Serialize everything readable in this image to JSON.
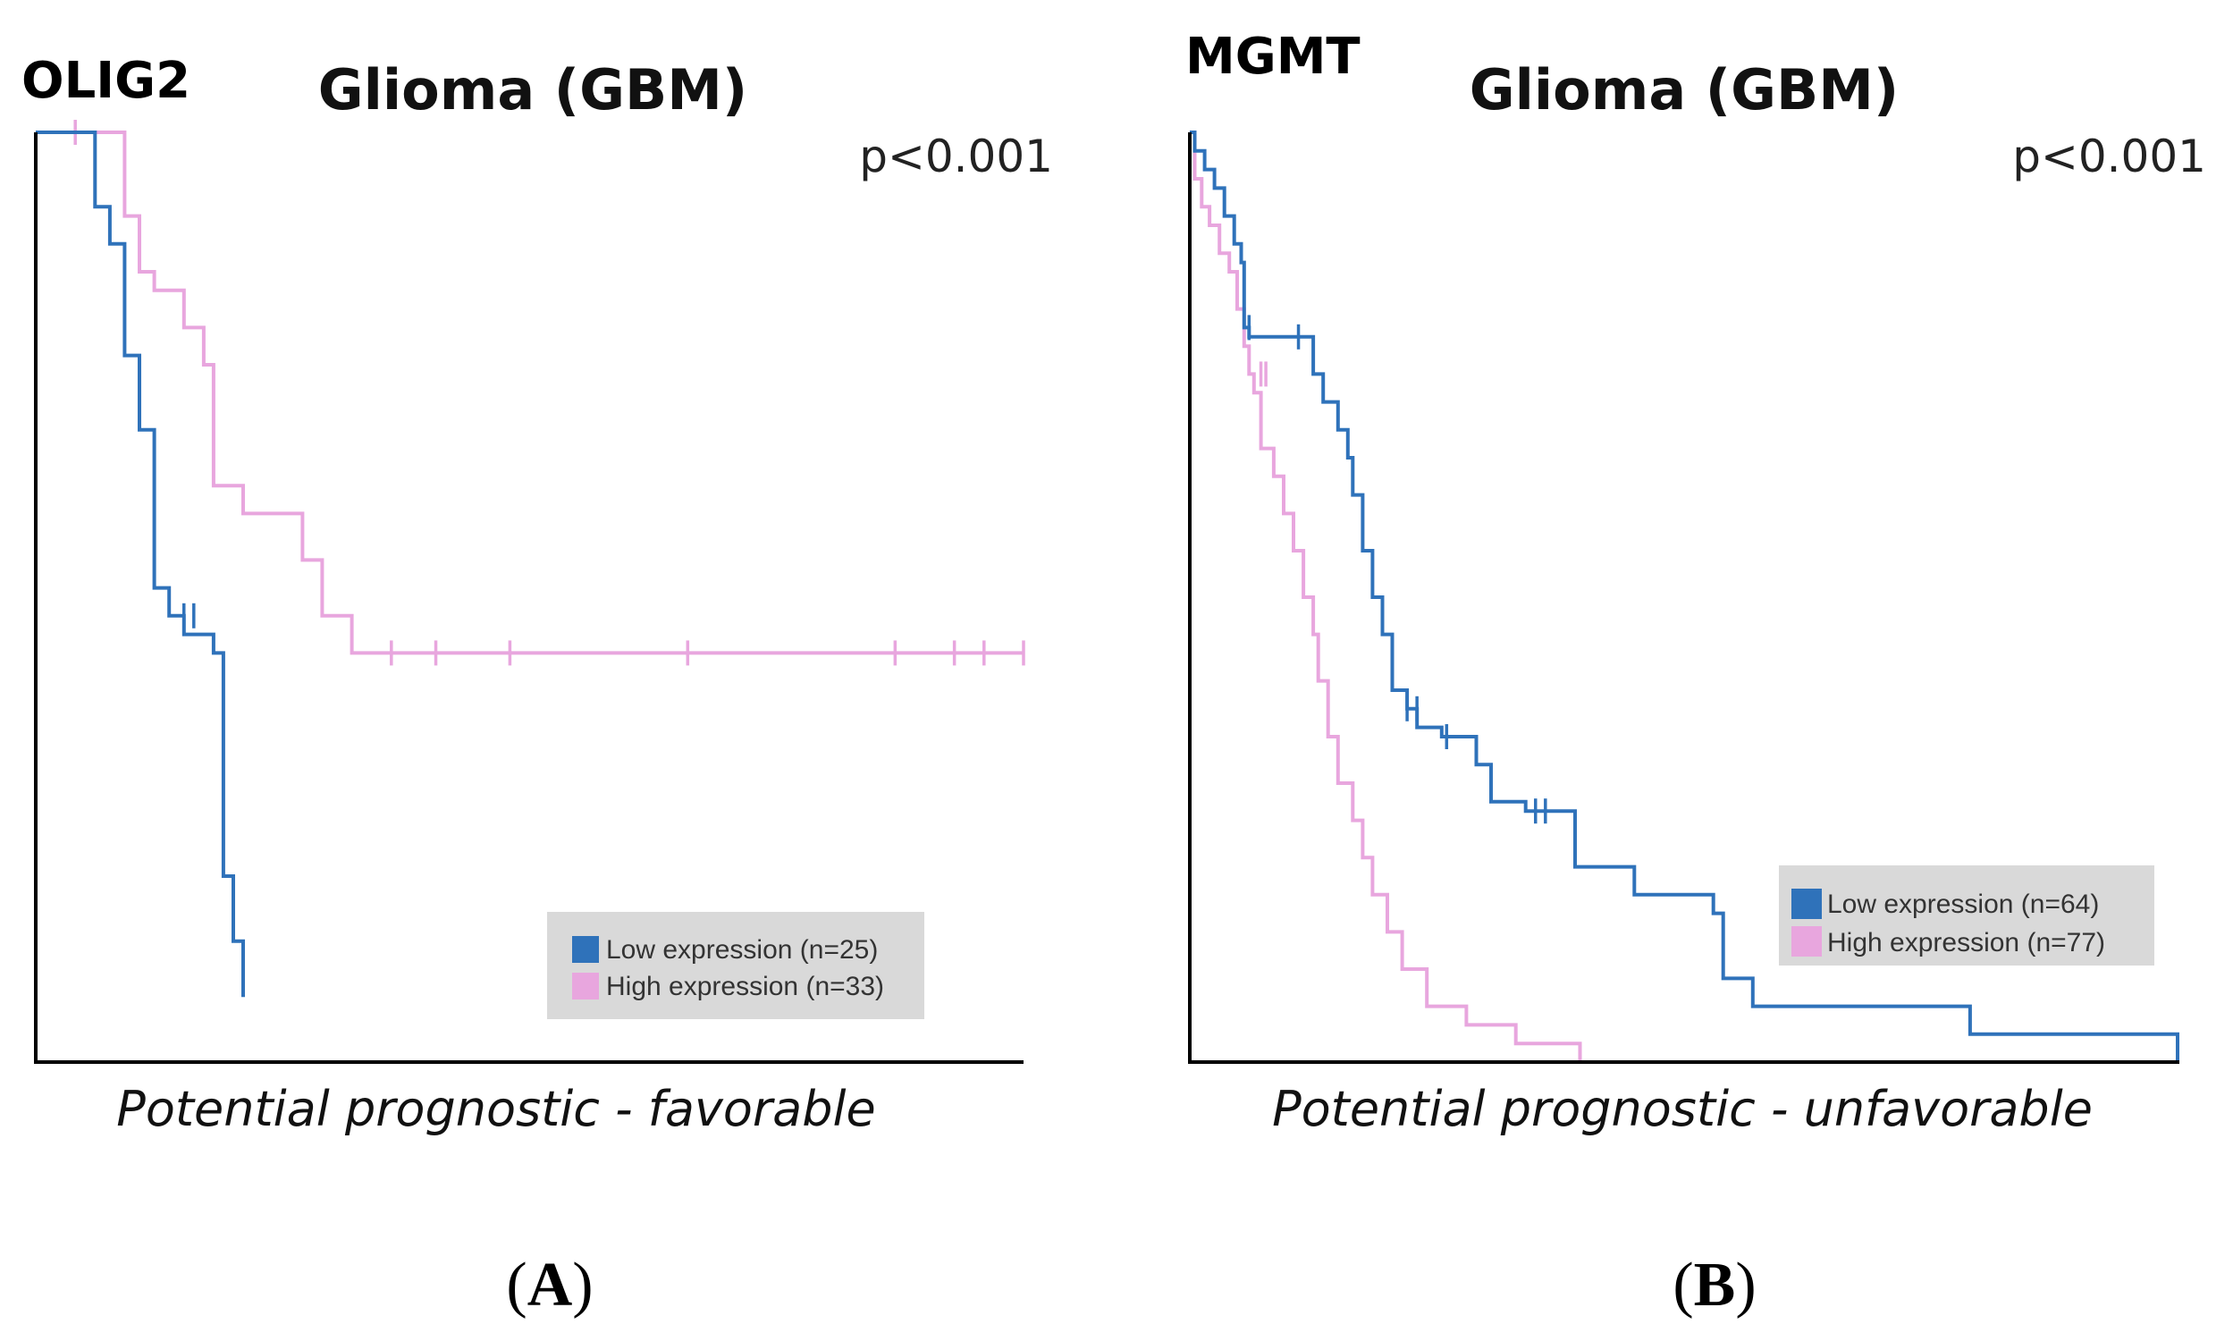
{
  "colors": {
    "low": "#2f72ba",
    "high": "#e8a6de",
    "legend_bg": "#d9d9d9",
    "axis": "#000000"
  },
  "chart_data": [
    {
      "type": "line",
      "panel_label": "A",
      "gene": "OLIG2",
      "title": "Glioma (GBM)",
      "p_value": "p<0.001",
      "caption": "Potential prognostic - favorable",
      "xlim": [
        0,
        100
      ],
      "ylim": [
        0,
        100
      ],
      "xlabel": "",
      "ylabel": "",
      "legend_position": "bottom-right",
      "series": [
        {
          "name": "Low expression (n=25)",
          "color_key": "low",
          "steps": [
            [
              0,
              100
            ],
            [
              6,
              100
            ],
            [
              6,
              92
            ],
            [
              7.5,
              92
            ],
            [
              7.5,
              88
            ],
            [
              9,
              88
            ],
            [
              9,
              76
            ],
            [
              10.5,
              76
            ],
            [
              10.5,
              68
            ],
            [
              12,
              68
            ],
            [
              12,
              51
            ],
            [
              13.5,
              51
            ],
            [
              13.5,
              48
            ],
            [
              15,
              48
            ],
            [
              15,
              46
            ],
            [
              18,
              46
            ],
            [
              18,
              44
            ],
            [
              19,
              44
            ],
            [
              19,
              20
            ],
            [
              20,
              20
            ],
            [
              20,
              13
            ],
            [
              21,
              13
            ],
            [
              21,
              7
            ]
          ],
          "censors": [
            [
              15,
              48
            ],
            [
              16,
              48
            ]
          ]
        },
        {
          "name": "High expression (n=33)",
          "color_key": "high",
          "steps": [
            [
              0,
              100
            ],
            [
              9,
              100
            ],
            [
              9,
              91
            ],
            [
              10.5,
              91
            ],
            [
              10.5,
              85
            ],
            [
              12,
              85
            ],
            [
              12,
              83
            ],
            [
              15,
              83
            ],
            [
              15,
              79
            ],
            [
              17,
              79
            ],
            [
              17,
              75
            ],
            [
              18,
              75
            ],
            [
              18,
              62
            ],
            [
              21,
              62
            ],
            [
              21,
              59
            ],
            [
              27,
              59
            ],
            [
              27,
              54
            ],
            [
              29,
              54
            ],
            [
              29,
              48
            ],
            [
              32,
              48
            ],
            [
              32,
              44
            ],
            [
              100,
              44
            ]
          ],
          "censors": [
            [
              4,
              100
            ],
            [
              36,
              44
            ],
            [
              40.5,
              44
            ],
            [
              48,
              44
            ],
            [
              66,
              44
            ],
            [
              87,
              44
            ],
            [
              93,
              44
            ],
            [
              96,
              44
            ],
            [
              100,
              44
            ]
          ]
        }
      ]
    },
    {
      "type": "line",
      "panel_label": "B",
      "gene": "MGMT",
      "title": "Glioma (GBM)",
      "p_value": "p<0.001",
      "caption": "Potential prognostic - unfavorable",
      "xlim": [
        0,
        100
      ],
      "ylim": [
        0,
        100
      ],
      "xlabel": "",
      "ylabel": "",
      "legend_position": "bottom-right",
      "series": [
        {
          "name": "Low expression (n=64)",
          "color_key": "low",
          "steps": [
            [
              0,
              100
            ],
            [
              0.5,
              100
            ],
            [
              0.5,
              98
            ],
            [
              1.5,
              98
            ],
            [
              1.5,
              96
            ],
            [
              2.5,
              96
            ],
            [
              2.5,
              94
            ],
            [
              3.5,
              94
            ],
            [
              3.5,
              91
            ],
            [
              4.5,
              91
            ],
            [
              4.5,
              88
            ],
            [
              5.2,
              88
            ],
            [
              5.2,
              86
            ],
            [
              5.5,
              86
            ],
            [
              5.5,
              79
            ],
            [
              6,
              79
            ],
            [
              6,
              78
            ],
            [
              12.5,
              78
            ],
            [
              12.5,
              74
            ],
            [
              13.5,
              74
            ],
            [
              13.5,
              71
            ],
            [
              15,
              71
            ],
            [
              15,
              68
            ],
            [
              16,
              68
            ],
            [
              16,
              65
            ],
            [
              16.5,
              65
            ],
            [
              16.5,
              61
            ],
            [
              17.5,
              61
            ],
            [
              17.5,
              55
            ],
            [
              18.5,
              55
            ],
            [
              18.5,
              50
            ],
            [
              19.5,
              50
            ],
            [
              19.5,
              46
            ],
            [
              20.5,
              46
            ],
            [
              20.5,
              40
            ],
            [
              22,
              40
            ],
            [
              22,
              38
            ],
            [
              23,
              38
            ],
            [
              23,
              36
            ],
            [
              25.5,
              36
            ],
            [
              25.5,
              35
            ],
            [
              29,
              35
            ],
            [
              29,
              32
            ],
            [
              30.5,
              32
            ],
            [
              30.5,
              28
            ],
            [
              34,
              28
            ],
            [
              34,
              27
            ],
            [
              39,
              27
            ],
            [
              39,
              21
            ],
            [
              45,
              21
            ],
            [
              45,
              18
            ],
            [
              53,
              18
            ],
            [
              53,
              16
            ],
            [
              54,
              16
            ],
            [
              54,
              9
            ],
            [
              57,
              9
            ],
            [
              57,
              6
            ],
            [
              79,
              6
            ],
            [
              79,
              3
            ],
            [
              100,
              3
            ],
            [
              100,
              0
            ]
          ],
          "censors": [
            [
              6,
              79
            ],
            [
              11,
              78
            ],
            [
              22,
              38
            ],
            [
              23,
              38
            ],
            [
              26,
              35
            ],
            [
              35,
              27
            ],
            [
              36,
              27
            ]
          ]
        },
        {
          "name": "High expression (n=77)",
          "color_key": "high",
          "steps": [
            [
              0,
              100
            ],
            [
              0.5,
              100
            ],
            [
              0.5,
              95
            ],
            [
              1.2,
              95
            ],
            [
              1.2,
              92
            ],
            [
              2,
              92
            ],
            [
              2,
              90
            ],
            [
              3,
              90
            ],
            [
              3,
              87
            ],
            [
              4,
              87
            ],
            [
              4,
              85
            ],
            [
              4.8,
              85
            ],
            [
              4.8,
              81
            ],
            [
              5.5,
              81
            ],
            [
              5.5,
              77
            ],
            [
              6,
              77
            ],
            [
              6,
              74
            ],
            [
              6.5,
              74
            ],
            [
              6.5,
              72
            ],
            [
              7.2,
              72
            ],
            [
              7.2,
              66
            ],
            [
              8.5,
              66
            ],
            [
              8.5,
              63
            ],
            [
              9.5,
              63
            ],
            [
              9.5,
              59
            ],
            [
              10.5,
              59
            ],
            [
              10.5,
              55
            ],
            [
              11.5,
              55
            ],
            [
              11.5,
              50
            ],
            [
              12.5,
              50
            ],
            [
              12.5,
              46
            ],
            [
              13,
              46
            ],
            [
              13,
              41
            ],
            [
              14,
              41
            ],
            [
              14,
              35
            ],
            [
              15,
              35
            ],
            [
              15,
              30
            ],
            [
              16.5,
              30
            ],
            [
              16.5,
              26
            ],
            [
              17.5,
              26
            ],
            [
              17.5,
              22
            ],
            [
              18.5,
              22
            ],
            [
              18.5,
              18
            ],
            [
              20,
              18
            ],
            [
              20,
              14
            ],
            [
              21.5,
              14
            ],
            [
              21.5,
              10
            ],
            [
              24,
              10
            ],
            [
              24,
              6
            ],
            [
              28,
              6
            ],
            [
              28,
              4
            ],
            [
              33,
              4
            ],
            [
              33,
              2
            ],
            [
              39.5,
              2
            ],
            [
              39.5,
              0
            ]
          ],
          "censors": [
            [
              7.2,
              74
            ],
            [
              7.7,
              74
            ]
          ]
        }
      ]
    }
  ]
}
